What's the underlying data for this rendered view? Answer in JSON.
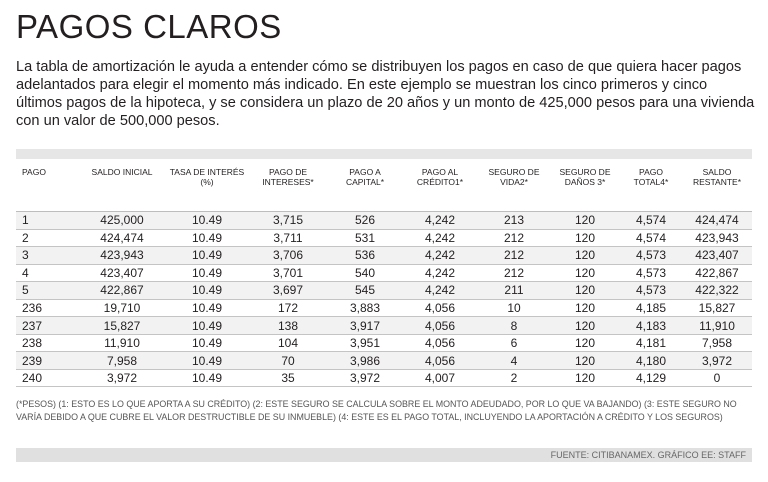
{
  "title": "PAGOS CLAROS",
  "intro": "La tabla de amortización le ayuda a entender cómo se distribuyen los pagos en caso de que quiera hacer pagos adelantados para elegir el momento más indicado. En este ejemplo se muestran los cinco primeros y cinco últimos pagos de la hipoteca, y se considera un plazo de 20 años y un monto de 425,000 pesos para una vivienda con un valor de 500,000 pesos.",
  "table": {
    "headers": [
      "PAGO",
      "SALDO INICIAL",
      "TASA DE INTERÉS (%)",
      "PAGO DE INTERESES*",
      "PAGO A CAPITAL*",
      "PAGO AL CRÉDITO1*",
      "SEGURO DE VIDA2*",
      "SEGURO DE DAÑOS 3*",
      "PAGO TOTAL4*",
      "SALDO RESTANTE*"
    ],
    "rows": [
      [
        "1",
        "425,000",
        "10.49",
        "3,715",
        "526",
        "4,242",
        "213",
        "120",
        "4,574",
        "424,474"
      ],
      [
        "2",
        "424,474",
        "10.49",
        "3,711",
        "531",
        "4,242",
        "212",
        "120",
        "4,574",
        "423,943"
      ],
      [
        "3",
        "423,943",
        "10.49",
        "3,706",
        "536",
        "4,242",
        "212",
        "120",
        "4,573",
        "423,407"
      ],
      [
        "4",
        "423,407",
        "10.49",
        "3,701",
        "540",
        "4,242",
        "212",
        "120",
        "4,573",
        "422,867"
      ],
      [
        "5",
        "422,867",
        "10.49",
        "3,697",
        "545",
        "4,242",
        "211",
        "120",
        "4,573",
        "422,322"
      ],
      [
        "236",
        "19,710",
        "10.49",
        "172",
        "3,883",
        "4,056",
        "10",
        "120",
        "4,185",
        "15,827"
      ],
      [
        "237",
        "15,827",
        "10.49",
        "138",
        "3,917",
        "4,056",
        "8",
        "120",
        "4,183",
        "11,910"
      ],
      [
        "238",
        "11,910",
        "10.49",
        "104",
        "3,951",
        "4,056",
        "6",
        "120",
        "4,181",
        "7,958"
      ],
      [
        "239",
        "7,958",
        "10.49",
        "70",
        "3,986",
        "4,056",
        "4",
        "120",
        "4,180",
        "3,972"
      ],
      [
        "240",
        "3,972",
        "10.49",
        "35",
        "3,972",
        "4,007",
        "2",
        "120",
        "4,129",
        "0"
      ]
    ]
  },
  "footnote": "(*PESOS) (1: ESTO ES LO QUE APORTA A SU CRÉDITO) (2: ESTE SEGURO SE CALCULA SOBRE EL MONTO ADEUDADO, POR LO QUE VA BAJANDO) (3: ESTE SEGURO NO VARÍA DEBIDO A QUE CUBRE EL VALOR DESTRUCTIBLE DE SU INMUEBLE) (4: ESTE ES EL PAGO TOTAL, INCLUYENDO LA APORTACIÓN A CRÉDITO Y LOS SEGUROS)",
  "source": "FUENTE: CITIBANAMEX. GRÁFICO EE: STAFF"
}
